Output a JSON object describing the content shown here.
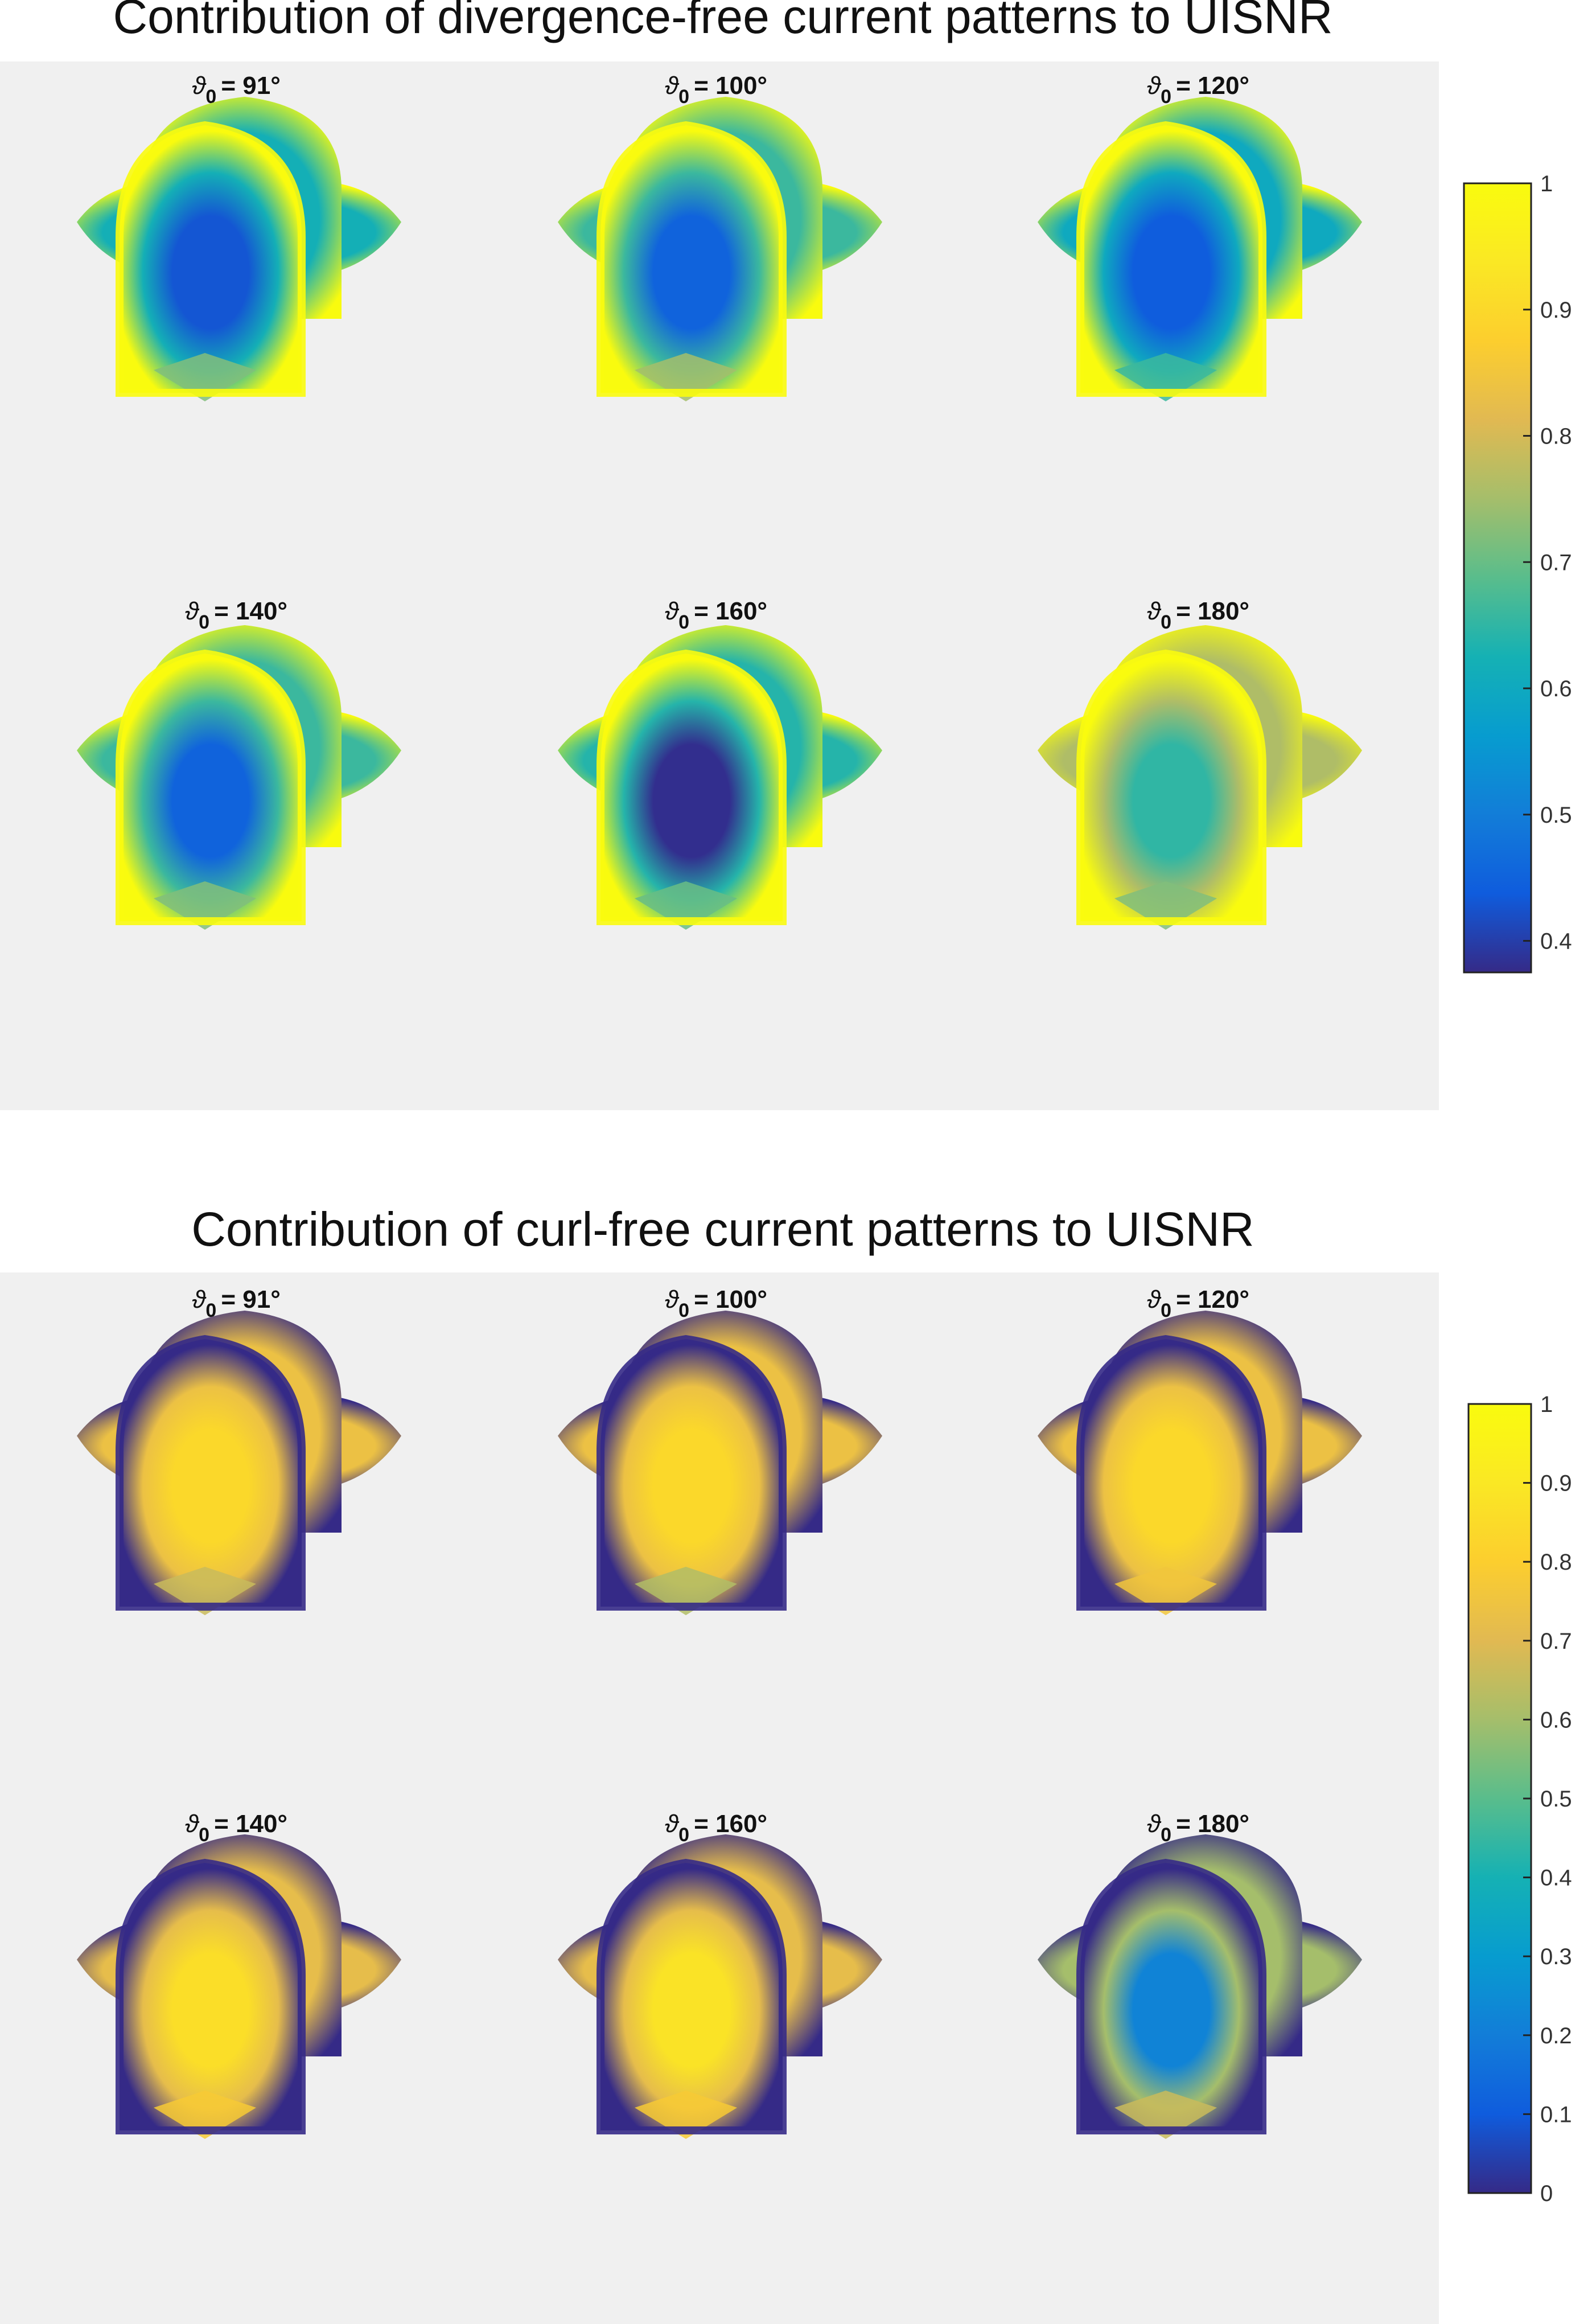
{
  "chart_data": [
    {
      "type": "heatmap",
      "title": "Contribution of divergence-free current patterns to UISNR",
      "symbol": "ϑ",
      "subscript": "0",
      "colorbar": {
        "min": 0.375,
        "max": 1.0,
        "ticks": [
          1,
          0.9,
          0.8,
          0.7,
          0.6,
          0.5,
          0.4
        ]
      },
      "panels": [
        {
          "label": "= 91°",
          "theta0": 91,
          "center_value": 0.43,
          "edge_value": 1.0,
          "bottom_value": 0.72,
          "mid_value": 0.62,
          "min_pos": "two lobes"
        },
        {
          "label": "= 100°",
          "theta0": 100,
          "center_value": 0.45,
          "edge_value": 1.0,
          "bottom_value": 0.75,
          "mid_value": 0.66,
          "min_pos": "two lobes"
        },
        {
          "label": "= 120°",
          "theta0": 120,
          "center_value": 0.44,
          "edge_value": 1.0,
          "bottom_value": 0.66,
          "mid_value": 0.6,
          "min_pos": "lower"
        },
        {
          "label": "= 140°",
          "theta0": 140,
          "center_value": 0.45,
          "edge_value": 1.0,
          "bottom_value": 0.72,
          "mid_value": 0.66,
          "min_pos": "bottom"
        },
        {
          "label": "= 160°",
          "theta0": 160,
          "center_value": 0.38,
          "edge_value": 1.0,
          "bottom_value": 0.7,
          "mid_value": 0.64,
          "min_pos": "bottom"
        },
        {
          "label": "= 180°",
          "theta0": 180,
          "center_value": 0.65,
          "edge_value": 1.0,
          "bottom_value": 0.72,
          "mid_value": 0.76,
          "min_pos": "ring"
        }
      ]
    },
    {
      "type": "heatmap",
      "title": "Contribution of curl-free current patterns to UISNR",
      "symbol": "ϑ",
      "subscript": "0",
      "colorbar": {
        "min": 0.0,
        "max": 1.0,
        "ticks": [
          1,
          0.9,
          0.8,
          0.7,
          0.6,
          0.5,
          0.4,
          0.3,
          0.2,
          0.1,
          0
        ]
      },
      "panels": [
        {
          "label": "= 91°",
          "theta0": 91,
          "center_value": 0.84,
          "edge_value": 0.0,
          "bottom_value": 0.66,
          "mid_value": 0.74,
          "min_pos": "two lobes"
        },
        {
          "label": "= 100°",
          "theta0": 100,
          "center_value": 0.84,
          "edge_value": 0.0,
          "bottom_value": 0.62,
          "mid_value": 0.74,
          "min_pos": "two lobes"
        },
        {
          "label": "= 120°",
          "theta0": 120,
          "center_value": 0.84,
          "edge_value": 0.0,
          "bottom_value": 0.76,
          "mid_value": 0.74,
          "min_pos": "lower"
        },
        {
          "label": "= 140°",
          "theta0": 140,
          "center_value": 0.86,
          "edge_value": 0.0,
          "bottom_value": 0.78,
          "mid_value": 0.72,
          "min_pos": "bottom"
        },
        {
          "label": "= 160°",
          "theta0": 160,
          "center_value": 0.88,
          "edge_value": 0.0,
          "bottom_value": 0.78,
          "mid_value": 0.72,
          "min_pos": "bottom"
        },
        {
          "label": "= 180°",
          "theta0": 180,
          "center_value": 0.22,
          "edge_value": 0.0,
          "bottom_value": 0.66,
          "mid_value": 0.6,
          "min_pos": "ring"
        }
      ]
    }
  ]
}
